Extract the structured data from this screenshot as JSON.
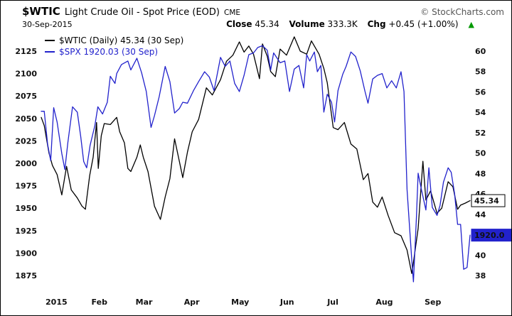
{
  "header": {
    "symbol": "$WTIC",
    "name": "Light Crude Oil - Spot Price (EOD)",
    "exchange": "CME",
    "copyright": "© StockCharts.com",
    "date": "30-Sep-2015",
    "close_label": "Close",
    "close_value": "45.34",
    "volume_label": "Volume",
    "volume_value": "333.3K",
    "chg_label": "Chg",
    "chg_value": "+0.45 (+1.00%)",
    "change_direction": "up",
    "arrow_glyph": "▲",
    "arrow_color": "#009900"
  },
  "legend": [
    {
      "id": "wtic",
      "label": "$WTIC (Daily) 45.34 (30 Sep)",
      "color": "#000000"
    },
    {
      "id": "spx",
      "label": "$SPX 1920.03 (30 Sep)",
      "color": "#2222cc"
    }
  ],
  "chart_data": {
    "type": "line",
    "title": "$WTIC Light Crude Oil - Spot Price (EOD) CME",
    "subtitle": "30-Sep-2015  Close 45.34  Volume 333.3K  Chg +0.45 (+1.00%)",
    "grid": false,
    "legend_position": "top-left",
    "x_axis": {
      "range": [
        0,
        100
      ],
      "labels": [
        {
          "text": "2015",
          "x": 1.0,
          "bold": true
        },
        {
          "text": "Feb",
          "x": 11.7
        },
        {
          "text": "Mar",
          "x": 22.0
        },
        {
          "text": "Apr",
          "x": 33.3
        },
        {
          "text": "May",
          "x": 44.3
        },
        {
          "text": "Jun",
          "x": 55.7
        },
        {
          "text": "Jul",
          "x": 66.7
        },
        {
          "text": "Aug",
          "x": 78.0
        },
        {
          "text": "Sep",
          "x": 89.4
        }
      ]
    },
    "left_axis": {
      "label": "$SPX",
      "ticks": [
        2125,
        2100,
        2075,
        2050,
        2025,
        2000,
        1975,
        1950,
        1925,
        1900,
        1875
      ],
      "range": [
        1860,
        2140
      ]
    },
    "right_axis": {
      "label": "$WTIC",
      "ticks": [
        60,
        58,
        56,
        54,
        52,
        50,
        48,
        46,
        44,
        42,
        40,
        38
      ],
      "range": [
        36.68,
        61.32
      ]
    },
    "series": [
      {
        "name": "$WTIC (Daily)",
        "axis": "right",
        "color": "#000000",
        "last": 45.34,
        "points": [
          [
            0,
            53.5
          ],
          [
            0.7,
            52.7
          ],
          [
            1.8,
            50.0
          ],
          [
            2.6,
            48.8
          ],
          [
            3.7,
            47.9
          ],
          [
            4.8,
            45.9
          ],
          [
            5.9,
            48.7
          ],
          [
            7.0,
            46.4
          ],
          [
            8.4,
            45.6
          ],
          [
            9.5,
            44.8
          ],
          [
            10.3,
            44.5
          ],
          [
            11.3,
            47.8
          ],
          [
            12.1,
            49.6
          ],
          [
            12.9,
            53.0
          ],
          [
            13.3,
            48.5
          ],
          [
            14.0,
            51.7
          ],
          [
            14.7,
            52.9
          ],
          [
            16.1,
            52.8
          ],
          [
            17.6,
            53.5
          ],
          [
            18.3,
            52.1
          ],
          [
            19.4,
            51.0
          ],
          [
            20.2,
            48.5
          ],
          [
            20.9,
            48.2
          ],
          [
            22.3,
            49.6
          ],
          [
            23.1,
            50.8
          ],
          [
            23.8,
            49.6
          ],
          [
            24.9,
            48.2
          ],
          [
            26.4,
            44.8
          ],
          [
            27.8,
            43.5
          ],
          [
            28.9,
            45.7
          ],
          [
            30.0,
            47.5
          ],
          [
            31.1,
            51.4
          ],
          [
            32.2,
            49.2
          ],
          [
            33.0,
            47.6
          ],
          [
            34.1,
            50.1
          ],
          [
            35.2,
            52.1
          ],
          [
            36.7,
            53.3
          ],
          [
            38.5,
            56.4
          ],
          [
            39.9,
            55.7
          ],
          [
            41.8,
            57.2
          ],
          [
            43.2,
            59.0
          ],
          [
            44.7,
            59.6
          ],
          [
            46.2,
            60.9
          ],
          [
            47.3,
            59.9
          ],
          [
            48.4,
            60.5
          ],
          [
            49.5,
            59.7
          ],
          [
            50.9,
            57.3
          ],
          [
            51.6,
            60.7
          ],
          [
            52.7,
            59.5
          ],
          [
            53.5,
            58.0
          ],
          [
            54.6,
            57.5
          ],
          [
            55.7,
            60.2
          ],
          [
            57.2,
            59.6
          ],
          [
            59.0,
            61.4
          ],
          [
            60.4,
            60.0
          ],
          [
            61.9,
            59.7
          ],
          [
            63.0,
            61.0
          ],
          [
            64.8,
            59.7
          ],
          [
            65.9,
            58.3
          ],
          [
            66.7,
            56.9
          ],
          [
            68.1,
            52.5
          ],
          [
            69.2,
            52.3
          ],
          [
            70.7,
            53.0
          ],
          [
            72.2,
            50.9
          ],
          [
            73.6,
            50.4
          ],
          [
            75.1,
            47.4
          ],
          [
            76.2,
            48.0
          ],
          [
            77.3,
            45.2
          ],
          [
            78.4,
            44.7
          ],
          [
            79.5,
            45.7
          ],
          [
            80.9,
            43.9
          ],
          [
            82.4,
            42.2
          ],
          [
            83.9,
            41.9
          ],
          [
            85.3,
            40.5
          ],
          [
            86.4,
            38.2
          ],
          [
            86.8,
            39.3
          ],
          [
            87.9,
            42.6
          ],
          [
            89.0,
            49.2
          ],
          [
            89.7,
            45.4
          ],
          [
            90.8,
            46.3
          ],
          [
            92.3,
            44.1
          ],
          [
            93.4,
            44.6
          ],
          [
            94.9,
            47.2
          ],
          [
            96.0,
            46.7
          ],
          [
            97.1,
            44.5
          ],
          [
            97.8,
            44.9
          ],
          [
            98.9,
            45.1
          ],
          [
            100,
            45.34
          ]
        ]
      },
      {
        "name": "$SPX",
        "axis": "left",
        "color": "#2222cc",
        "last": 1920.03,
        "points": [
          [
            0,
            2058
          ],
          [
            0.7,
            2058
          ],
          [
            1.5,
            2021
          ],
          [
            2.2,
            2003
          ],
          [
            2.9,
            2062
          ],
          [
            3.7,
            2046
          ],
          [
            4.8,
            2011
          ],
          [
            5.5,
            1993
          ],
          [
            6.2,
            2023
          ],
          [
            7.3,
            2063
          ],
          [
            8.4,
            2057
          ],
          [
            9.2,
            2030
          ],
          [
            9.9,
            2002
          ],
          [
            10.6,
            1995
          ],
          [
            11.4,
            2020
          ],
          [
            12.5,
            2042
          ],
          [
            13.2,
            2063
          ],
          [
            14.3,
            2055
          ],
          [
            15.4,
            2068
          ],
          [
            16.1,
            2097
          ],
          [
            17.2,
            2089
          ],
          [
            17.6,
            2100
          ],
          [
            18.7,
            2110
          ],
          [
            20.2,
            2114
          ],
          [
            20.9,
            2104
          ],
          [
            22.3,
            2117
          ],
          [
            23.4,
            2101
          ],
          [
            24.5,
            2080
          ],
          [
            25.6,
            2040
          ],
          [
            26.4,
            2053
          ],
          [
            27.5,
            2074
          ],
          [
            28.9,
            2108
          ],
          [
            30.0,
            2091
          ],
          [
            31.1,
            2056
          ],
          [
            32.2,
            2061
          ],
          [
            33.0,
            2068
          ],
          [
            34.1,
            2067
          ],
          [
            35.5,
            2081
          ],
          [
            36.7,
            2091
          ],
          [
            38.1,
            2102
          ],
          [
            39.2,
            2096
          ],
          [
            40.3,
            2081
          ],
          [
            41.8,
            2118
          ],
          [
            42.9,
            2108
          ],
          [
            44.0,
            2114
          ],
          [
            45.1,
            2089
          ],
          [
            46.2,
            2080
          ],
          [
            47.3,
            2098
          ],
          [
            48.4,
            2121
          ],
          [
            49.5,
            2123
          ],
          [
            50.5,
            2129
          ],
          [
            51.6,
            2131
          ],
          [
            52.7,
            2126
          ],
          [
            53.5,
            2104
          ],
          [
            54.2,
            2123
          ],
          [
            55.7,
            2112
          ],
          [
            56.8,
            2114
          ],
          [
            57.9,
            2080
          ],
          [
            59.0,
            2105
          ],
          [
            60.1,
            2109
          ],
          [
            61.2,
            2084
          ],
          [
            61.9,
            2121
          ],
          [
            62.6,
            2114
          ],
          [
            63.7,
            2124
          ],
          [
            64.4,
            2102
          ],
          [
            65.2,
            2109
          ],
          [
            65.9,
            2057
          ],
          [
            66.7,
            2077
          ],
          [
            67.7,
            2068
          ],
          [
            68.4,
            2046
          ],
          [
            69.2,
            2081
          ],
          [
            70.3,
            2099
          ],
          [
            71.1,
            2108
          ],
          [
            72.2,
            2124
          ],
          [
            73.3,
            2119
          ],
          [
            74.4,
            2103
          ],
          [
            75.5,
            2080
          ],
          [
            76.2,
            2067
          ],
          [
            77.3,
            2094
          ],
          [
            78.4,
            2098
          ],
          [
            79.5,
            2100
          ],
          [
            80.6,
            2084
          ],
          [
            81.7,
            2092
          ],
          [
            82.8,
            2084
          ],
          [
            83.9,
            2102
          ],
          [
            84.6,
            2080
          ],
          [
            85.3,
            1971
          ],
          [
            86.4,
            1893
          ],
          [
            86.8,
            1868
          ],
          [
            87.5,
            1940
          ],
          [
            87.9,
            1989
          ],
          [
            88.6,
            1972
          ],
          [
            89.7,
            1948
          ],
          [
            90.4,
            1995
          ],
          [
            91.2,
            1951
          ],
          [
            92.3,
            1942
          ],
          [
            93.0,
            1953
          ],
          [
            93.8,
            1979
          ],
          [
            94.9,
            1995
          ],
          [
            95.6,
            1990
          ],
          [
            96.4,
            1966
          ],
          [
            97.1,
            1932
          ],
          [
            97.8,
            1932
          ],
          [
            98.5,
            1882
          ],
          [
            99.3,
            1884
          ],
          [
            100,
            1920.03
          ]
        ]
      }
    ],
    "price_labels": [
      {
        "text": "45.34",
        "value": 45.34,
        "axis": "right",
        "bg": "#ffffff",
        "fg": "#000000",
        "border": "#000000",
        "w": 47
      },
      {
        "text": "1920.0",
        "value": 1920.03,
        "axis": "left",
        "bg": "#2222cc",
        "fg": "#ffffff",
        "border": "#2222cc",
        "w": 58
      }
    ]
  }
}
